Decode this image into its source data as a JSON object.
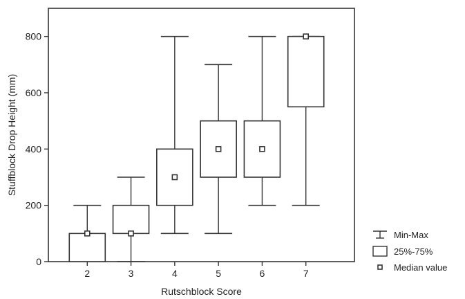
{
  "chart_data": {
    "type": "box",
    "xlabel": "Rutschblock Score",
    "ylabel": "Stuffblock Drop Height (mm)",
    "ylim": [
      0,
      900
    ],
    "yticks": [
      0,
      200,
      400,
      600,
      800
    ],
    "categories": [
      "2",
      "3",
      "4",
      "5",
      "6",
      "7"
    ],
    "boxes": [
      {
        "category": "2",
        "min": 0,
        "q1": 0,
        "median": 100,
        "q3": 100,
        "max": 200
      },
      {
        "category": "3",
        "min": 0,
        "q1": 100,
        "median": 100,
        "q3": 200,
        "max": 300
      },
      {
        "category": "4",
        "min": 100,
        "q1": 200,
        "median": 300,
        "q3": 400,
        "max": 800
      },
      {
        "category": "5",
        "min": 100,
        "q1": 300,
        "median": 400,
        "q3": 500,
        "max": 700
      },
      {
        "category": "6",
        "min": 200,
        "q1": 300,
        "median": 400,
        "q3": 500,
        "max": 800
      },
      {
        "category": "7",
        "min": 200,
        "q1": 550,
        "median": 800,
        "q3": 800,
        "max": 800
      }
    ],
    "legend": {
      "position": "right",
      "items": [
        {
          "key": "whisker",
          "label": "Min-Max"
        },
        {
          "key": "box",
          "label": "25%-75%"
        },
        {
          "key": "median",
          "label": "Median value"
        }
      ]
    },
    "colors": {
      "line": "#333333",
      "box_fill": "#ffffff",
      "background": "#ffffff"
    }
  }
}
